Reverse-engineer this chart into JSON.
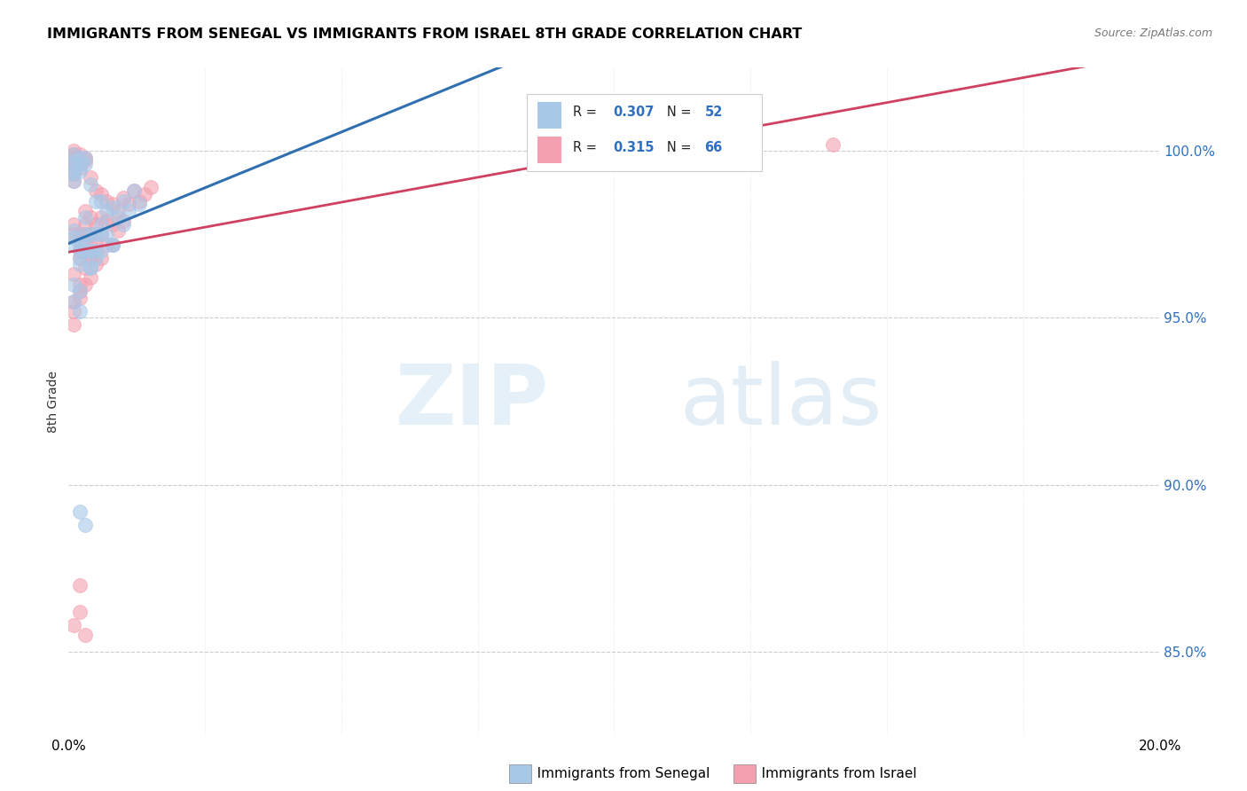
{
  "title": "IMMIGRANTS FROM SENEGAL VS IMMIGRANTS FROM ISRAEL 8TH GRADE CORRELATION CHART",
  "source": "Source: ZipAtlas.com",
  "ylabel": "8th Grade",
  "watermark_zip": "ZIP",
  "watermark_atlas": "atlas",
  "senegal_color": "#a8c8e8",
  "israel_color": "#f4a0b0",
  "senegal_line_color": "#3070b0",
  "israel_line_color": "#d04060",
  "background_color": "#ffffff",
  "xlim": [
    0.0,
    0.2
  ],
  "ylim": [
    0.825,
    1.025
  ],
  "yticks": [
    0.85,
    0.9,
    0.95,
    1.0
  ],
  "ytick_labels": [
    "85.0%",
    "90.0%",
    "95.0%",
    "100.0%"
  ],
  "xtick_labels_left": "0.0%",
  "xtick_labels_right": "20.0%",
  "legend_senegal_label": "Immigrants from Senegal",
  "legend_israel_label": "Immigrants from Israel",
  "legend_R_senegal": "0.307",
  "legend_N_senegal": "52",
  "legend_R_israel": "0.315",
  "legend_N_israel": "66",
  "senegal_x": [
    0.001,
    0.001,
    0.001,
    0.001,
    0.001,
    0.001,
    0.001,
    0.001,
    0.001,
    0.002,
    0.002,
    0.002,
    0.002,
    0.002,
    0.002,
    0.002,
    0.003,
    0.003,
    0.003,
    0.003,
    0.003,
    0.004,
    0.004,
    0.004,
    0.004,
    0.005,
    0.005,
    0.005,
    0.006,
    0.006,
    0.006,
    0.007,
    0.007,
    0.008,
    0.008,
    0.009,
    0.01,
    0.011,
    0.012,
    0.013,
    0.001,
    0.001,
    0.002,
    0.002,
    0.003,
    0.004,
    0.005,
    0.006,
    0.008,
    0.01,
    0.002,
    0.003
  ],
  "senegal_y": [
    0.999,
    0.997,
    0.996,
    0.994,
    0.993,
    0.991,
    0.976,
    0.974,
    0.972,
    0.998,
    0.996,
    0.994,
    0.972,
    0.97,
    0.968,
    0.966,
    0.998,
    0.996,
    0.98,
    0.975,
    0.97,
    0.99,
    0.975,
    0.97,
    0.965,
    0.985,
    0.975,
    0.968,
    0.985,
    0.978,
    0.97,
    0.982,
    0.975,
    0.983,
    0.972,
    0.98,
    0.985,
    0.982,
    0.988,
    0.984,
    0.96,
    0.955,
    0.958,
    0.952,
    0.972,
    0.965,
    0.97,
    0.975,
    0.972,
    0.978,
    0.892,
    0.888
  ],
  "israel_x": [
    0.001,
    0.001,
    0.001,
    0.001,
    0.001,
    0.001,
    0.001,
    0.001,
    0.001,
    0.002,
    0.002,
    0.002,
    0.002,
    0.002,
    0.002,
    0.003,
    0.003,
    0.003,
    0.003,
    0.003,
    0.004,
    0.004,
    0.004,
    0.004,
    0.004,
    0.005,
    0.005,
    0.005,
    0.005,
    0.006,
    0.006,
    0.006,
    0.006,
    0.007,
    0.007,
    0.007,
    0.008,
    0.008,
    0.008,
    0.009,
    0.009,
    0.01,
    0.01,
    0.011,
    0.012,
    0.013,
    0.014,
    0.015,
    0.002,
    0.003,
    0.001,
    0.002,
    0.003,
    0.004,
    0.001,
    0.002,
    0.003,
    0.004,
    0.002,
    0.001,
    0.001,
    0.002,
    0.14,
    0.001,
    0.002,
    0.003
  ],
  "israel_y": [
    1.0,
    0.999,
    0.998,
    0.997,
    0.995,
    0.993,
    0.991,
    0.978,
    0.975,
    0.999,
    0.997,
    0.995,
    0.975,
    0.973,
    0.97,
    0.998,
    0.997,
    0.982,
    0.978,
    0.972,
    0.992,
    0.98,
    0.975,
    0.972,
    0.968,
    0.988,
    0.978,
    0.972,
    0.966,
    0.987,
    0.98,
    0.975,
    0.968,
    0.985,
    0.979,
    0.972,
    0.984,
    0.978,
    0.972,
    0.982,
    0.976,
    0.986,
    0.979,
    0.984,
    0.988,
    0.985,
    0.987,
    0.989,
    0.968,
    0.975,
    0.963,
    0.96,
    0.965,
    0.968,
    0.955,
    0.958,
    0.96,
    0.962,
    0.956,
    0.952,
    0.948,
    0.87,
    1.002,
    0.858,
    0.862,
    0.855
  ]
}
